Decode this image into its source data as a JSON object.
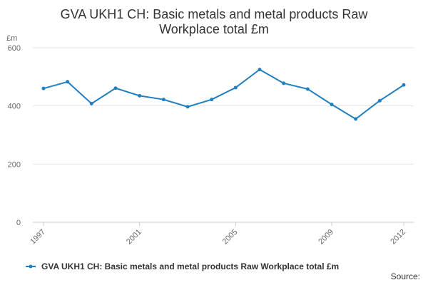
{
  "chart_data": {
    "type": "line",
    "title_lines": [
      "GVA UKH1 CH: Basic metals and metal products Raw",
      "Workplace total £m"
    ],
    "y_unit": "£m",
    "ylim": [
      0,
      600
    ],
    "y_ticks": [
      0,
      200,
      400,
      600
    ],
    "x_tick_labels": [
      "1997",
      "2001",
      "2005",
      "2009",
      "2012"
    ],
    "grid": true,
    "legend_position": "bottom-left",
    "series": [
      {
        "name": "GVA UKH1 CH: Basic metals and metal products Raw Workplace total £m",
        "color": "#1f7fbf",
        "x": [
          1997,
          1998,
          1999,
          2000,
          2001,
          2002,
          2003,
          2004,
          2005,
          2006,
          2007,
          2008,
          2009,
          2010,
          2011,
          2012
        ],
        "values": [
          460,
          483,
          408,
          461,
          435,
          422,
          397,
          422,
          463,
          525,
          478,
          458,
          405,
          355,
          418,
          472
        ]
      }
    ],
    "source_label": "Source:"
  }
}
